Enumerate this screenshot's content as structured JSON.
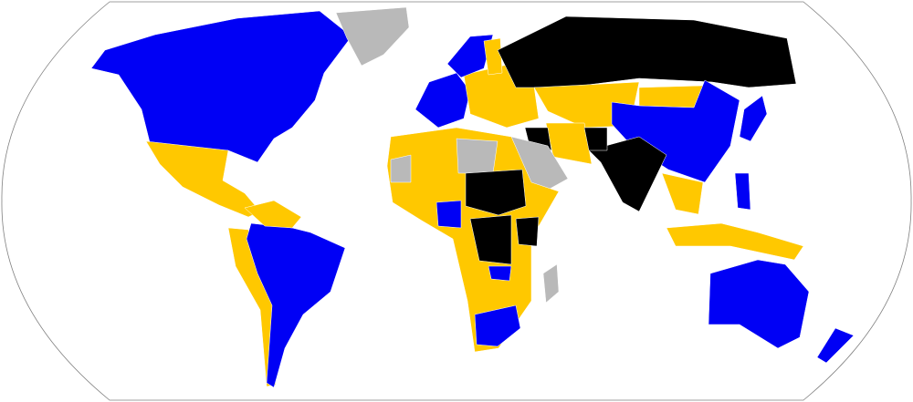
{
  "map": {
    "projection": "robinson",
    "palette": {
      "category_a": "#0000f5",
      "category_b": "#ffc800",
      "category_c": "#000000",
      "no_data": "#b9b9b9",
      "ocean": "#ffffff",
      "border": "#808080"
    },
    "regions": [
      {
        "id": "north-america-north",
        "cat": "category_a"
      },
      {
        "id": "greenland",
        "cat": "no_data"
      },
      {
        "id": "mexico-central-america",
        "cat": "category_b"
      },
      {
        "id": "south-america-west",
        "cat": "category_b"
      },
      {
        "id": "south-america-east",
        "cat": "category_a"
      },
      {
        "id": "northern-south-america",
        "cat": "category_b"
      },
      {
        "id": "western-europe",
        "cat": "category_a"
      },
      {
        "id": "eastern-europe",
        "cat": "category_b"
      },
      {
        "id": "scandinavia",
        "cat": "category_a"
      },
      {
        "id": "finland",
        "cat": "category_b"
      },
      {
        "id": "russia",
        "cat": "category_c"
      },
      {
        "id": "central-asia",
        "cat": "category_b"
      },
      {
        "id": "mongolia",
        "cat": "category_b"
      },
      {
        "id": "china",
        "cat": "category_a"
      },
      {
        "id": "south-asia",
        "cat": "category_c"
      },
      {
        "id": "iran",
        "cat": "category_b"
      },
      {
        "id": "iraq-afghanistan",
        "cat": "category_c"
      },
      {
        "id": "arabia",
        "cat": "no_data"
      },
      {
        "id": "africa",
        "cat": "category_b"
      },
      {
        "id": "north-africa",
        "cat": "no_data"
      },
      {
        "id": "sudan-chad",
        "cat": "category_c"
      },
      {
        "id": "central-africa",
        "cat": "category_c"
      },
      {
        "id": "east-africa",
        "cat": "category_c"
      },
      {
        "id": "nigeria",
        "cat": "category_a"
      },
      {
        "id": "southern-africa",
        "cat": "category_a"
      },
      {
        "id": "zambia",
        "cat": "category_a"
      },
      {
        "id": "madagascar",
        "cat": "no_data"
      },
      {
        "id": "southeast-asia",
        "cat": "category_b"
      },
      {
        "id": "indonesia",
        "cat": "category_b"
      },
      {
        "id": "japan",
        "cat": "category_a"
      },
      {
        "id": "philippines",
        "cat": "category_a"
      },
      {
        "id": "australia",
        "cat": "category_a"
      },
      {
        "id": "new-zealand",
        "cat": "category_a"
      }
    ]
  }
}
